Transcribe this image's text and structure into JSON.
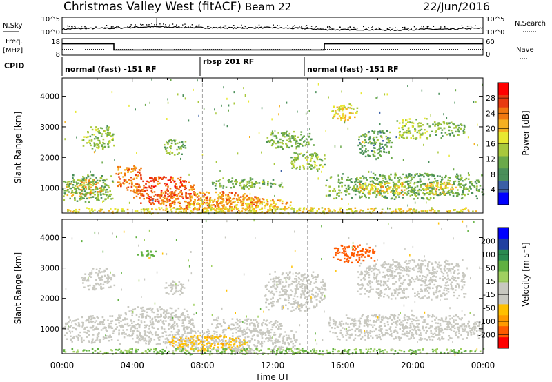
{
  "header": {
    "title": "Christmas Valley West (fitACF)",
    "beam": "Beam 22",
    "date": "22/Jun/2016"
  },
  "colors": {
    "power": [
      "#0000ff",
      "#3a5fa6",
      "#4a8f5a",
      "#6aa94a",
      "#a8c83c",
      "#e8e830",
      "#f5b020",
      "#f07810",
      "#e83a10",
      "#ff0000"
    ],
    "velocity": [
      "#ff0000",
      "#ff5a00",
      "#ff9a00",
      "#ffc000",
      "#c8c8c0",
      "#c8c8c0",
      "#a0d060",
      "#60b040",
      "#2a8a50",
      "#2040a0",
      "#0000ff"
    ],
    "grey": "#c8c8c0"
  },
  "chart_data": [
    {
      "type": "line",
      "name": "noise-panel",
      "left_label": "N.Sky",
      "left_ticks": [
        "10^5",
        "10^0"
      ],
      "right_label": "N.Search",
      "right_ticks": [
        "10^5",
        "10^0"
      ],
      "series": [
        {
          "name": "N.Sky",
          "x": [
            0,
            1,
            2,
            3,
            4,
            5,
            6,
            7,
            8,
            9,
            10,
            11,
            12,
            13,
            14,
            15,
            16,
            17,
            18,
            19,
            20,
            21,
            22,
            23,
            24
          ],
          "y": [
            1.3,
            1.5,
            1.6,
            1.6,
            1.9,
            2.1,
            2.0,
            1.9,
            1.8,
            1.8,
            1.7,
            1.8,
            1.8,
            1.6,
            1.5,
            1.2,
            1.1,
            1.2,
            1.1,
            1.0,
            1.2,
            1.3,
            1.2,
            1.5,
            1.6
          ]
        }
      ]
    },
    {
      "type": "line",
      "name": "frequency-panel",
      "left_label": "Freq.",
      "left_unit": "[MHz]",
      "left_ticks": [
        "18",
        "8"
      ],
      "right_label": "Nave",
      "right_ticks": [
        "60",
        "0"
      ],
      "series": [
        {
          "name": "Freq.",
          "x": [
            0,
            2.95,
            2.95,
            14.95,
            14.95,
            24
          ],
          "y": [
            15,
            15,
            11,
            11,
            15,
            15
          ]
        },
        {
          "name": "Nave",
          "x": [
            0,
            24
          ],
          "y": [
            20,
            20
          ]
        }
      ]
    },
    {
      "type": "table",
      "name": "cpid-strip",
      "label": "CPID",
      "segments": [
        {
          "start": 0,
          "end": 8,
          "label": "normal (fast) -151 RF"
        },
        {
          "start": 8,
          "end": 14,
          "label": "rbsp 201 RF"
        },
        {
          "start": 14,
          "end": 24,
          "label": "normal (fast) -151 RF"
        }
      ]
    },
    {
      "type": "heatmap",
      "name": "power-panel",
      "ylabel": "Slant Range [km]",
      "yticks": [
        1000,
        2000,
        3000,
        4000
      ],
      "ylim": [
        180,
        4600
      ],
      "xlim": [
        0,
        24
      ],
      "colorbar_label": "Power [dB]",
      "colorbar_ticks": [
        4,
        8,
        12,
        16,
        20,
        24,
        28
      ],
      "colorbar_range": [
        0,
        32
      ],
      "regions": [
        {
          "t0": 0.2,
          "t1": 2.2,
          "r0": 700,
          "r1": 1300,
          "v": 22
        },
        {
          "t0": 0.0,
          "t1": 2.9,
          "r0": 550,
          "r1": 1450,
          "v": 12
        },
        {
          "t0": 1.1,
          "t1": 2.95,
          "r0": 2300,
          "r1": 3050,
          "v": 13
        },
        {
          "t0": 3.0,
          "t1": 4.5,
          "r0": 900,
          "r1": 1750,
          "v": 24
        },
        {
          "t0": 4.0,
          "t1": 7.5,
          "r0": 500,
          "r1": 1400,
          "v": 26
        },
        {
          "t0": 5.5,
          "t1": 11.5,
          "r0": 300,
          "r1": 900,
          "v": 23
        },
        {
          "t0": 7.0,
          "t1": 13.0,
          "r0": 200,
          "r1": 700,
          "v": 20
        },
        {
          "t0": 8.5,
          "t1": 12.5,
          "r0": 1000,
          "r1": 1350,
          "v": 12
        },
        {
          "t0": 5.7,
          "t1": 7.0,
          "r0": 2100,
          "r1": 2600,
          "v": 12
        },
        {
          "t0": 11.5,
          "t1": 14.2,
          "r0": 2300,
          "r1": 2900,
          "v": 12
        },
        {
          "t0": 13.0,
          "t1": 15.0,
          "r0": 1600,
          "r1": 2200,
          "v": 13
        },
        {
          "t0": 15.0,
          "t1": 24.0,
          "r0": 650,
          "r1": 1500,
          "v": 11
        },
        {
          "t0": 16.8,
          "t1": 19.5,
          "r0": 800,
          "r1": 1200,
          "v": 20
        },
        {
          "t0": 20.5,
          "t1": 22.5,
          "r0": 800,
          "r1": 1200,
          "v": 19
        },
        {
          "t0": 16.8,
          "t1": 18.8,
          "r0": 2000,
          "r1": 2900,
          "v": 10
        },
        {
          "t0": 19.0,
          "t1": 20.8,
          "r0": 2600,
          "r1": 3300,
          "v": 15
        },
        {
          "t0": 20.8,
          "t1": 23.0,
          "r0": 2700,
          "r1": 3200,
          "v": 12
        },
        {
          "t0": 15.3,
          "t1": 16.8,
          "r0": 3200,
          "r1": 3800,
          "v": 18
        },
        {
          "t0": 0.0,
          "t1": 24.0,
          "r0": 180,
          "r1": 380,
          "v": 18
        }
      ]
    },
    {
      "type": "heatmap",
      "name": "velocity-panel",
      "ylabel": "Slant Range [km]",
      "yticks": [
        1000,
        2000,
        3000,
        4000
      ],
      "ylim": [
        180,
        4600
      ],
      "xlim": [
        0,
        24
      ],
      "xlabel": "Time UT",
      "xticks": [
        "00:00",
        "04:00",
        "08:00",
        "12:00",
        "16:00",
        "20:00",
        "00:00"
      ],
      "colorbar_label": "Velocity [m s⁻¹]",
      "colorbar_ticks": [
        "200",
        "100",
        "50",
        "15",
        "-15",
        "-50",
        "-100",
        "-200"
      ],
      "regions": [
        {
          "t0": 0.0,
          "t1": 2.95,
          "r0": 550,
          "r1": 1450,
          "v": 0
        },
        {
          "t0": 1.1,
          "t1": 2.95,
          "r0": 2300,
          "r1": 3050,
          "v": 0
        },
        {
          "t0": 3.0,
          "t1": 7.5,
          "r0": 500,
          "r1": 1750,
          "v": 0
        },
        {
          "t0": 6.0,
          "t1": 13.5,
          "r0": 200,
          "r1": 1000,
          "v": 0
        },
        {
          "t0": 6.0,
          "t1": 10.5,
          "r0": 300,
          "r1": 800,
          "v": -40
        },
        {
          "t0": 8.5,
          "t1": 12.5,
          "r0": 900,
          "r1": 1350,
          "v": 0
        },
        {
          "t0": 5.7,
          "t1": 7.0,
          "r0": 2100,
          "r1": 2600,
          "v": 0
        },
        {
          "t0": 11.5,
          "t1": 15.0,
          "r0": 1600,
          "r1": 2900,
          "v": 0
        },
        {
          "t0": 15.0,
          "t1": 24.0,
          "r0": 650,
          "r1": 1500,
          "v": 0
        },
        {
          "t0": 16.8,
          "t1": 23.0,
          "r0": 2000,
          "r1": 3300,
          "v": 0
        },
        {
          "t0": 15.3,
          "t1": 17.8,
          "r0": 3200,
          "r1": 3800,
          "v": -180
        },
        {
          "t0": 0.0,
          "t1": 24.0,
          "r0": 180,
          "r1": 380,
          "v": 30
        },
        {
          "t0": 4.2,
          "t1": 5.5,
          "r0": 3400,
          "r1": 3600,
          "v": 40
        }
      ]
    }
  ]
}
